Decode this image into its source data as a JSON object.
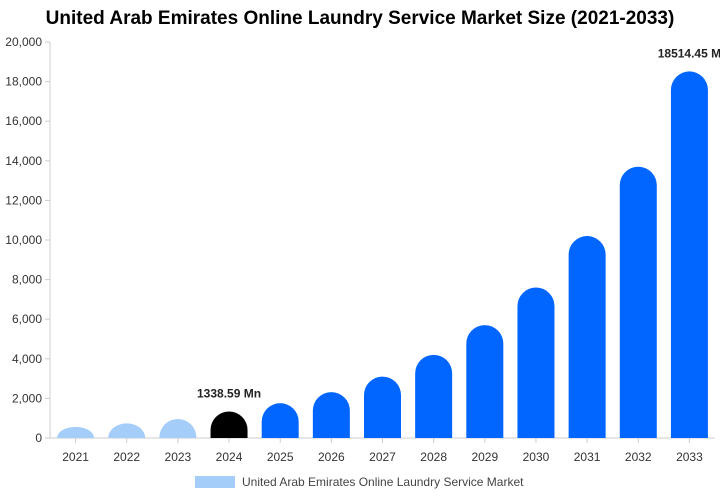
{
  "chart_data": {
    "type": "bar",
    "title": "United Arab Emirates Online Laundry Service Market Size (2021-2033)",
    "categories": [
      "2021",
      "2022",
      "2023",
      "2024",
      "2025",
      "2026",
      "2027",
      "2028",
      "2029",
      "2030",
      "2031",
      "2032",
      "2033"
    ],
    "series": [
      {
        "name": "United Arab Emirates Online Laundry Service Market",
        "values": [
          560,
          740,
          960,
          1338.59,
          1760,
          2320,
          3100,
          4200,
          5700,
          7600,
          10200,
          13700,
          18514.45
        ]
      }
    ],
    "ylim": [
      0,
      20000
    ],
    "yticks": [
      "0",
      "2,000",
      "4,000",
      "6,000",
      "8,000",
      "10,000",
      "12,000",
      "14,000",
      "16,000",
      "18,000",
      "20,000"
    ],
    "ytick_values": [
      0,
      2000,
      4000,
      6000,
      8000,
      10000,
      12000,
      14000,
      16000,
      18000,
      20000
    ],
    "annotations": [
      {
        "category": "2024",
        "text": "1338.59 Mn"
      },
      {
        "category": "2033",
        "text": "18514.45 M"
      }
    ],
    "grid": false,
    "legend_position": "bottom",
    "colors": {
      "historical": "#a4cdfa",
      "base_year": "#000000",
      "forecast": "#0066ff",
      "legend": "#a4cdfa"
    },
    "bar_color_groups": [
      "historical",
      "historical",
      "historical",
      "base_year",
      "forecast",
      "forecast",
      "forecast",
      "forecast",
      "forecast",
      "forecast",
      "forecast",
      "forecast",
      "forecast"
    ]
  }
}
